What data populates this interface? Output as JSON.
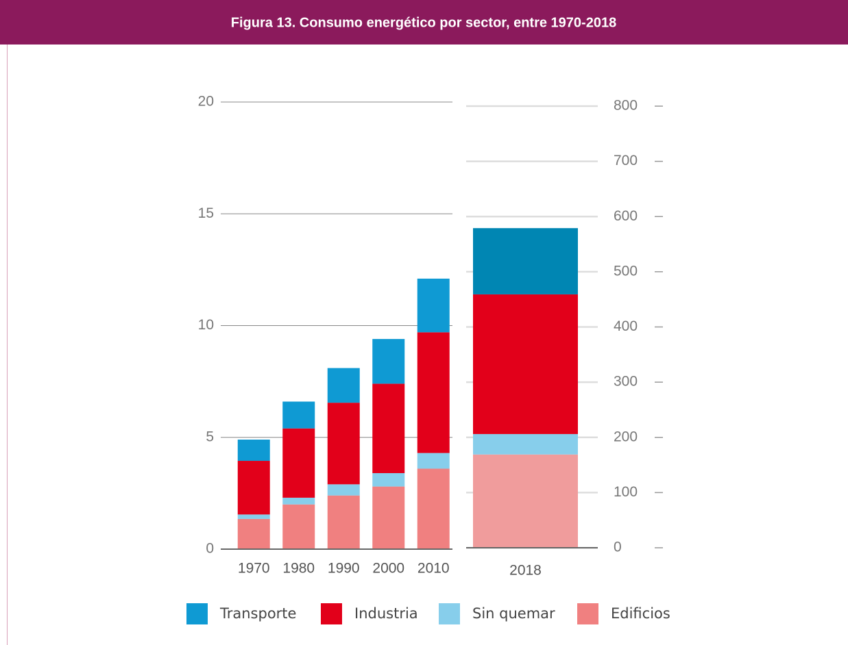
{
  "title": "Figura 13. Consumo energético por sector, entre 1970-2018",
  "chart_data": [
    {
      "type": "bar",
      "stacked": true,
      "categories": [
        "1970",
        "1980",
        "1990",
        "2000",
        "2010"
      ],
      "series": [
        {
          "name": "Edificios",
          "color": "#f08080",
          "values": [
            1.35,
            2.0,
            2.4,
            2.8,
            3.6
          ]
        },
        {
          "name": "Sin quemar",
          "color": "#87ceeb",
          "values": [
            0.2,
            0.3,
            0.5,
            0.6,
            0.7
          ]
        },
        {
          "name": "Industria",
          "color": "#e2001a",
          "values": [
            2.4,
            3.1,
            3.65,
            4.0,
            5.4
          ]
        },
        {
          "name": "Transporte",
          "color": "#0f9ad3",
          "values": [
            0.95,
            1.2,
            1.55,
            2.0,
            2.4
          ]
        }
      ],
      "ylim": [
        0,
        20
      ],
      "yticks": [
        0,
        5,
        10,
        15,
        20
      ],
      "grid": true
    },
    {
      "type": "bar",
      "stacked": true,
      "categories": [
        "2018"
      ],
      "series": [
        {
          "color": "#f09c9c",
          "values": [
            169
          ]
        },
        {
          "color": "#87ceeb",
          "values": [
            37
          ]
        },
        {
          "color": "#e2001a",
          "values": [
            253
          ]
        },
        {
          "color": "#0086b3",
          "values": [
            120
          ]
        }
      ],
      "ylim": [
        0,
        800
      ],
      "yticks": [
        0,
        100,
        200,
        300,
        400,
        500,
        600,
        700,
        800
      ],
      "grid": true
    }
  ]
}
